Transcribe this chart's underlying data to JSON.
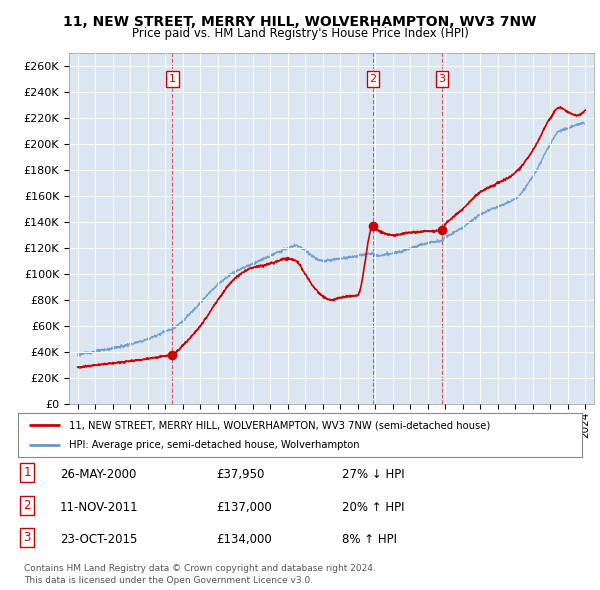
{
  "title": "11, NEW STREET, MERRY HILL, WOLVERHAMPTON, WV3 7NW",
  "subtitle": "Price paid vs. HM Land Registry's House Price Index (HPI)",
  "legend_line1": "11, NEW STREET, MERRY HILL, WOLVERHAMPTON, WV3 7NW (semi-detached house)",
  "legend_line2": "HPI: Average price, semi-detached house, Wolverhampton",
  "footer1": "Contains HM Land Registry data © Crown copyright and database right 2024.",
  "footer2": "This data is licensed under the Open Government Licence v3.0.",
  "transactions": [
    {
      "num": 1,
      "date": "26-MAY-2000",
      "price": "£37,950",
      "change": "27% ↓ HPI",
      "year": 2000.4
    },
    {
      "num": 2,
      "date": "11-NOV-2011",
      "price": "£137,000",
      "change": "20% ↑ HPI",
      "year": 2011.87
    },
    {
      "num": 3,
      "date": "23-OCT-2015",
      "price": "£134,000",
      "change": "8% ↑ HPI",
      "year": 2015.81
    }
  ],
  "background_color": "#dce6f1",
  "red_color": "#cc0000",
  "blue_color": "#6699cc",
  "ylim": [
    0,
    270000
  ],
  "yticks": [
    0,
    20000,
    40000,
    60000,
    80000,
    100000,
    120000,
    140000,
    160000,
    180000,
    200000,
    220000,
    240000,
    260000
  ],
  "xlim": [
    1994.5,
    2024.5
  ],
  "hpi_segments": [
    [
      1995.0,
      38000
    ],
    [
      1996.0,
      40500
    ],
    [
      1997.0,
      43000
    ],
    [
      1998.0,
      46000
    ],
    [
      1999.0,
      50000
    ],
    [
      2000.0,
      56000
    ],
    [
      2000.4,
      58000
    ],
    [
      2001.0,
      64000
    ],
    [
      2002.0,
      78000
    ],
    [
      2003.0,
      92000
    ],
    [
      2004.0,
      102000
    ],
    [
      2005.0,
      108000
    ],
    [
      2006.0,
      114000
    ],
    [
      2007.0,
      120000
    ],
    [
      2007.5,
      122000
    ],
    [
      2008.0,
      118000
    ],
    [
      2009.0,
      110000
    ],
    [
      2010.0,
      112000
    ],
    [
      2011.0,
      114000
    ],
    [
      2011.87,
      116000
    ],
    [
      2012.0,
      114000
    ],
    [
      2013.0,
      116000
    ],
    [
      2014.0,
      120000
    ],
    [
      2015.0,
      124000
    ],
    [
      2015.81,
      126000
    ],
    [
      2016.0,
      128000
    ],
    [
      2017.0,
      136000
    ],
    [
      2018.0,
      146000
    ],
    [
      2019.0,
      152000
    ],
    [
      2020.0,
      158000
    ],
    [
      2021.0,
      175000
    ],
    [
      2022.0,
      200000
    ],
    [
      2022.5,
      210000
    ],
    [
      2023.0,
      212000
    ],
    [
      2023.5,
      215000
    ],
    [
      2024.0,
      216000
    ]
  ],
  "red_segments": [
    [
      1995.0,
      28000
    ],
    [
      1996.0,
      30000
    ],
    [
      1997.0,
      31500
    ],
    [
      1998.0,
      33000
    ],
    [
      1999.0,
      35000
    ],
    [
      2000.0,
      37000
    ],
    [
      2000.4,
      37950
    ],
    [
      2001.0,
      45000
    ],
    [
      2002.0,
      60000
    ],
    [
      2003.0,
      80000
    ],
    [
      2004.0,
      97000
    ],
    [
      2005.0,
      105000
    ],
    [
      2006.0,
      108000
    ],
    [
      2007.0,
      112000
    ],
    [
      2007.5,
      110000
    ],
    [
      2008.0,
      100000
    ],
    [
      2008.5,
      90000
    ],
    [
      2009.0,
      83000
    ],
    [
      2009.5,
      80000
    ],
    [
      2010.0,
      82000
    ],
    [
      2011.0,
      84000
    ],
    [
      2011.87,
      137000
    ],
    [
      2012.0,
      135000
    ],
    [
      2013.0,
      130000
    ],
    [
      2014.0,
      132000
    ],
    [
      2015.0,
      133000
    ],
    [
      2015.81,
      134000
    ],
    [
      2016.0,
      138000
    ],
    [
      2017.0,
      150000
    ],
    [
      2018.0,
      163000
    ],
    [
      2019.0,
      170000
    ],
    [
      2020.0,
      178000
    ],
    [
      2021.0,
      195000
    ],
    [
      2022.0,
      220000
    ],
    [
      2022.5,
      228000
    ],
    [
      2023.0,
      225000
    ],
    [
      2023.5,
      222000
    ],
    [
      2024.0,
      226000
    ]
  ]
}
